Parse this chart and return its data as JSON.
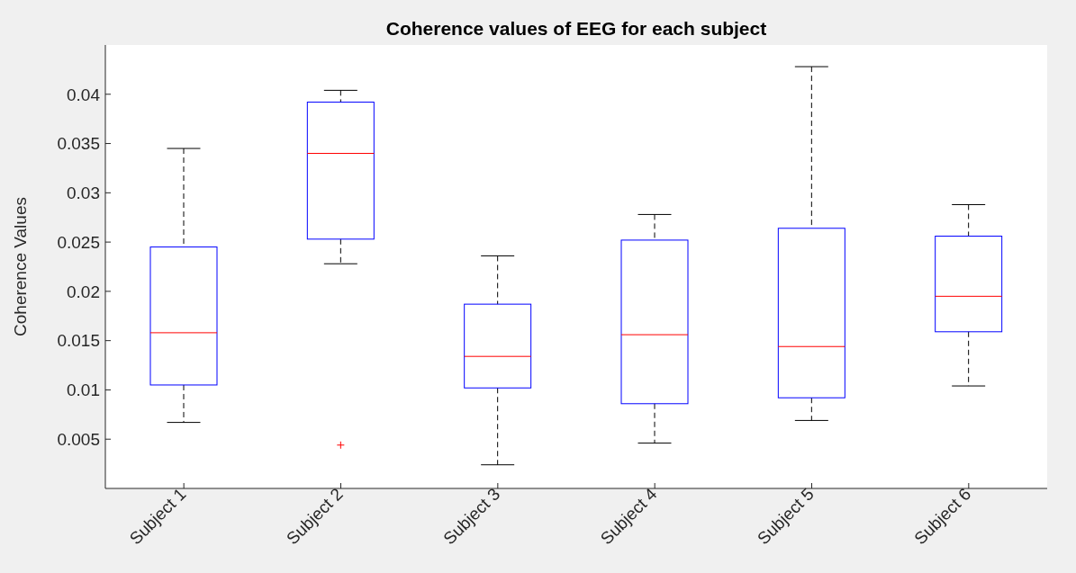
{
  "chart_data": {
    "type": "box",
    "title": "Coherence values of EEG for each subject",
    "ylabel": "Coherence Values",
    "categories": [
      "Subject 1",
      "Subject 2",
      "Subject 3",
      "Subject 4",
      "Subject 5",
      "Subject 6"
    ],
    "series": [
      {
        "color": "#0000ff",
        "boxes": [
          {
            "low": 0.0067,
            "q1": 0.0105,
            "median": 0.0158,
            "q3": 0.0245,
            "high": 0.0345
          },
          {
            "low": 0.0228,
            "q1": 0.0253,
            "median": 0.034,
            "q3": 0.0392,
            "high": 0.0404,
            "outliers": [
              0.0044
            ]
          },
          {
            "low": 0.0024,
            "q1": 0.0102,
            "median": 0.0134,
            "q3": 0.0187,
            "high": 0.0236
          },
          {
            "low": 0.0046,
            "q1": 0.0086,
            "median": 0.0156,
            "q3": 0.0252,
            "high": 0.0278
          },
          {
            "low": 0.0069,
            "q1": 0.0092,
            "median": 0.0144,
            "q3": 0.0264,
            "high": 0.0428
          },
          {
            "low": 0.0104,
            "q1": 0.0159,
            "median": 0.0195,
            "q3": 0.0256,
            "high": 0.0288
          }
        ]
      }
    ],
    "ylim": [
      0,
      0.045
    ],
    "yticks": [
      0.005,
      0.01,
      0.015,
      0.02,
      0.025,
      0.03,
      0.035,
      0.04
    ],
    "grid": false
  }
}
